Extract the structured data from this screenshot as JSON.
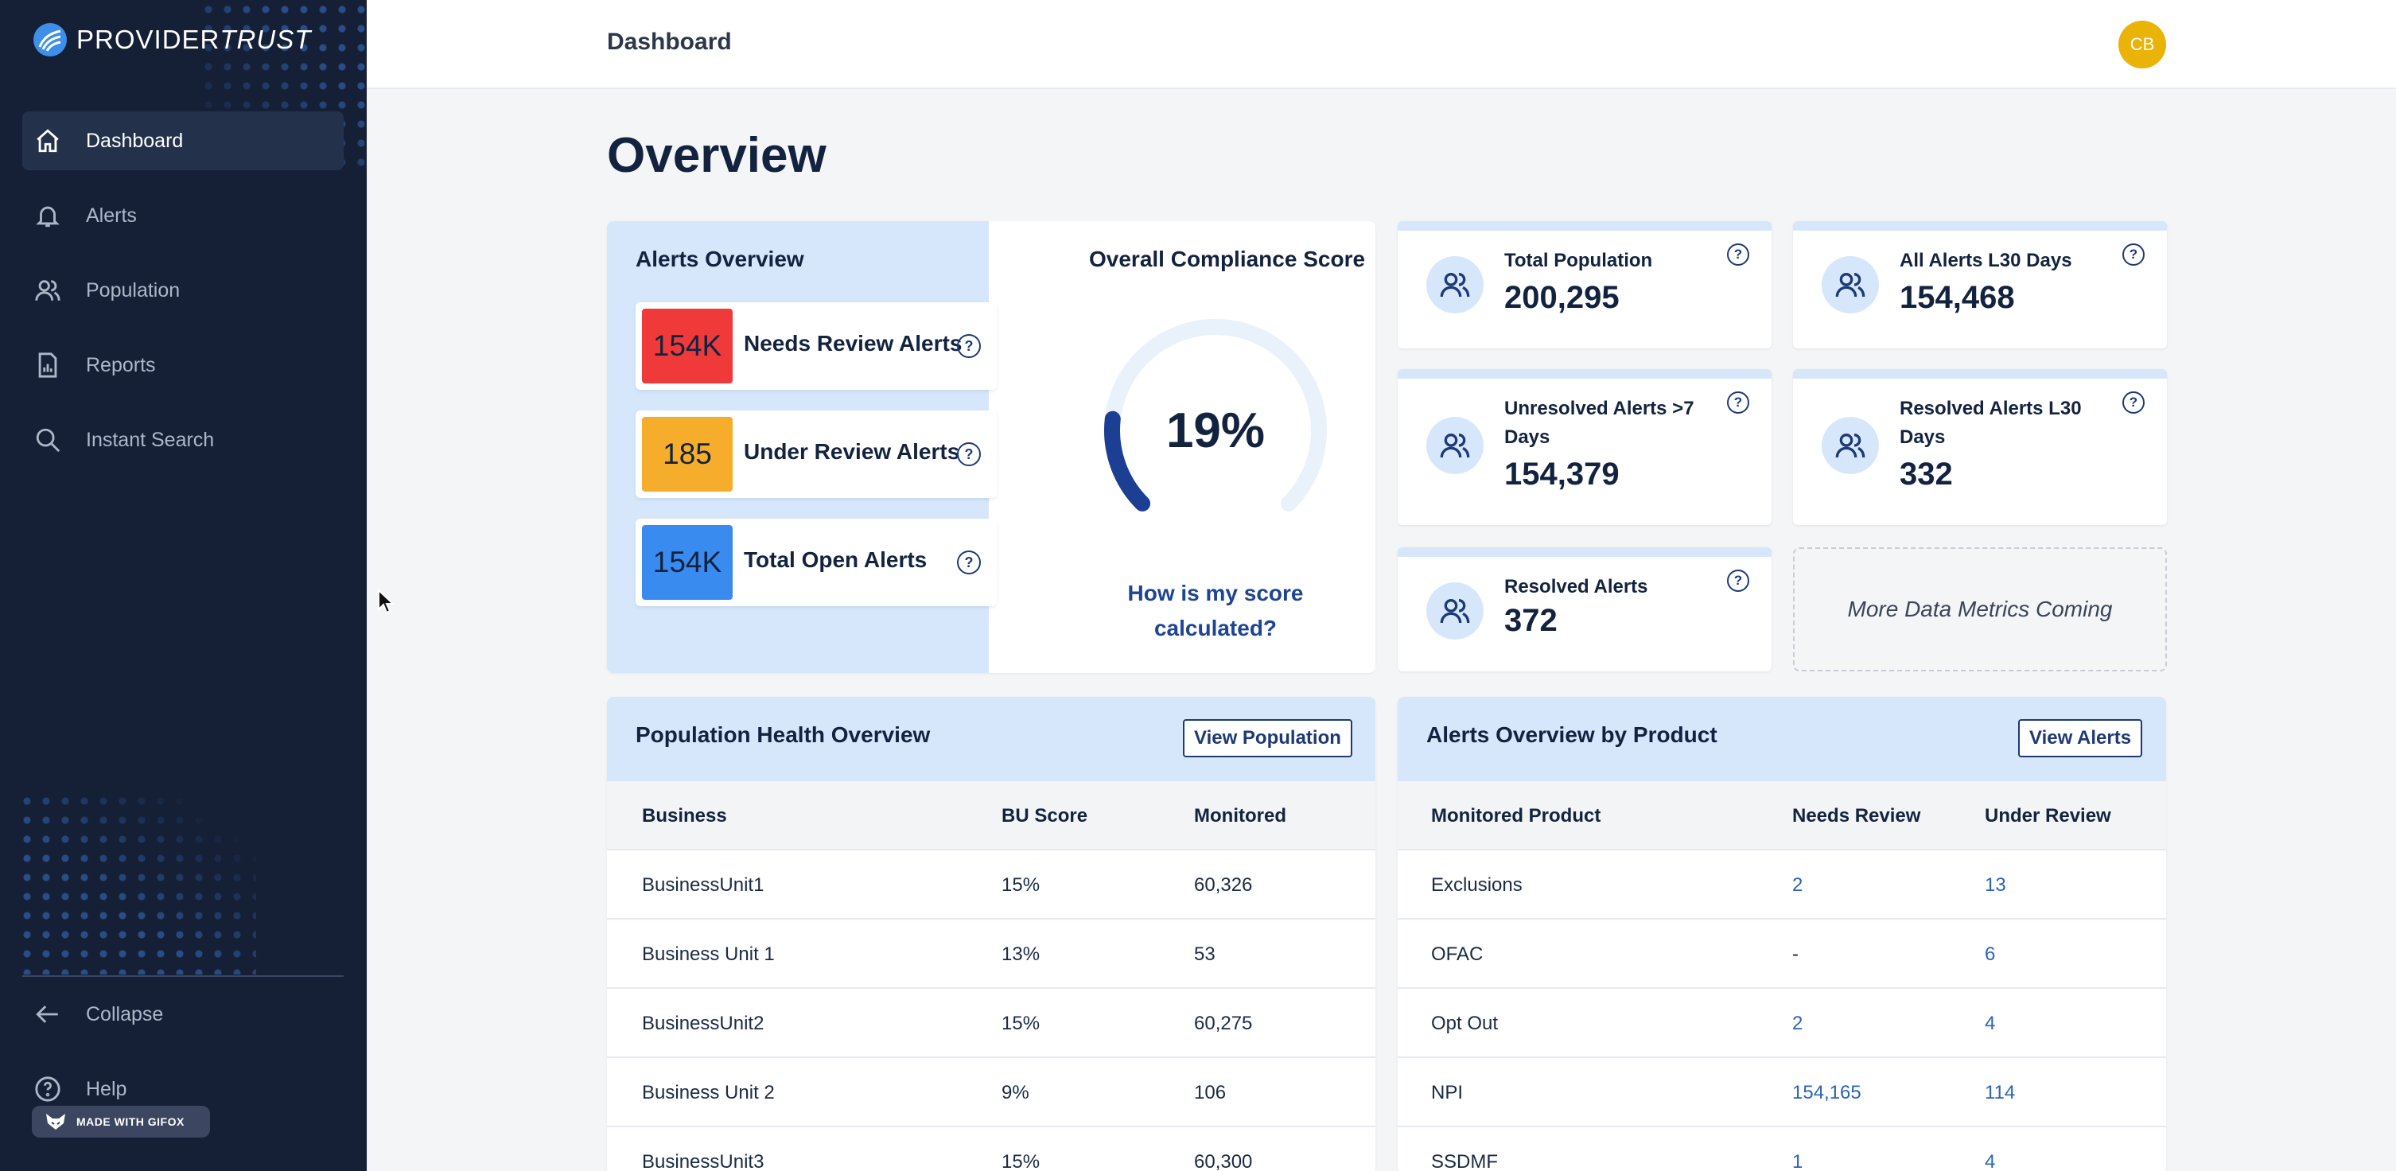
{
  "brand": {
    "name_bold": "PROVIDER",
    "name_light": "TRUST"
  },
  "sidebar": {
    "items": [
      {
        "label": "Dashboard",
        "icon": "home-icon",
        "active": true
      },
      {
        "label": "Alerts",
        "icon": "bell-icon"
      },
      {
        "label": "Population",
        "icon": "users-icon"
      },
      {
        "label": "Reports",
        "icon": "report-icon"
      },
      {
        "label": "Instant Search",
        "icon": "search-icon"
      }
    ],
    "collapse_label": "Collapse",
    "help_label": "Help"
  },
  "watermark": {
    "label": "MADE WITH GIFOX"
  },
  "header": {
    "title": "Dashboard",
    "avatar_initials": "CB"
  },
  "page": {
    "title": "Overview"
  },
  "alerts_overview": {
    "title": "Alerts Overview",
    "rows": [
      {
        "value": "154K",
        "label": "Needs Review Alerts",
        "color": "#f03a3a"
      },
      {
        "value": "185",
        "label": "Under Review Alerts",
        "color": "#f6ad2b"
      },
      {
        "value": "154K",
        "label": "Total Open Alerts",
        "color": "#3a8bef"
      }
    ]
  },
  "compliance": {
    "title": "Overall Compliance Score",
    "score_text": "19%",
    "score": 19,
    "link_text": "How is my score calculated?",
    "arc_color": "#1c3f94",
    "track_color": "#e9f1fb"
  },
  "metrics": {
    "total_population": {
      "label": "Total Population",
      "value": "200,295"
    },
    "all_alerts_l30": {
      "label": "All Alerts L30 Days",
      "value": "154,468"
    },
    "unresolved_7": {
      "label": "Unresolved Alerts >7 Days",
      "value": "154,379"
    },
    "resolved_l30": {
      "label": "Resolved Alerts L30 Days",
      "value": "332"
    },
    "resolved": {
      "label": "Resolved Alerts",
      "value": "372"
    },
    "coming": "More Data Metrics Coming"
  },
  "population_health": {
    "title": "Population Health Overview",
    "button": "View Population",
    "columns": [
      "Business",
      "BU Score",
      "Monitored"
    ],
    "rows": [
      [
        "BusinessUnit1",
        "15%",
        "60,326"
      ],
      [
        "Business Unit 1",
        "13%",
        "53"
      ],
      [
        "BusinessUnit2",
        "15%",
        "60,275"
      ],
      [
        "Business Unit 2",
        "9%",
        "106"
      ],
      [
        "BusinessUnit3",
        "15%",
        "60,300"
      ]
    ]
  },
  "alerts_by_product": {
    "title": "Alerts Overview by Product",
    "button": "View Alerts",
    "columns": [
      "Monitored Product",
      "Needs Review",
      "Under Review"
    ],
    "rows": [
      [
        "Exclusions",
        "2",
        "13"
      ],
      [
        "OFAC",
        "-",
        "6"
      ],
      [
        "Opt Out",
        "2",
        "4"
      ],
      [
        "NPI",
        "154,165",
        "114"
      ],
      [
        "SSDMF",
        "1",
        "4"
      ]
    ]
  }
}
